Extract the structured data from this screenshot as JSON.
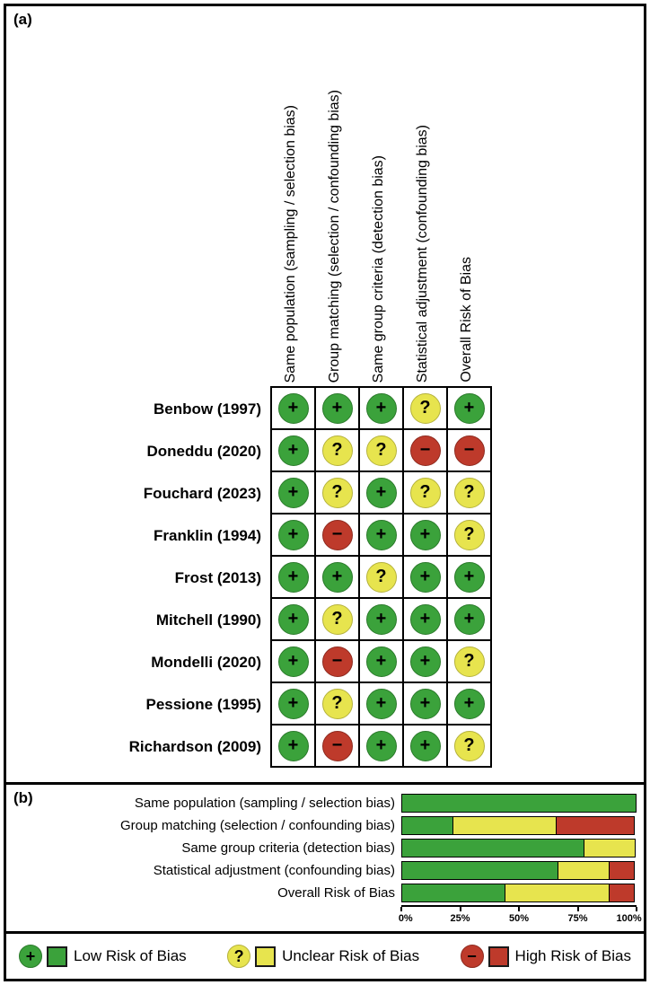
{
  "colors": {
    "low": "#3BA23B",
    "low_border": "#2B7A2B",
    "unclear": "#E7E44E",
    "unclear_border": "#B5B23C",
    "high": "#BE3A2B",
    "high_border": "#8E2A1F"
  },
  "ratings_key": {
    "low": {
      "symbol": "+",
      "label": "Low Risk of Bias"
    },
    "unclear": {
      "symbol": "?",
      "label": "Unclear Risk of Bias"
    },
    "high": {
      "symbol": "−",
      "label": "High Risk of Bias"
    }
  },
  "panel_a": {
    "label": "(a)",
    "domains": [
      "Same population (sampling / selection bias)",
      "Group matching (selection / confounding bias)",
      "Same group criteria (detection bias)",
      "Statistical adjustment (confounding bias)",
      "Overall Risk of Bias"
    ],
    "studies": [
      {
        "name": "Benbow (1997)",
        "ratings": [
          "low",
          "low",
          "low",
          "unclear",
          "low"
        ]
      },
      {
        "name": "Doneddu (2020)",
        "ratings": [
          "low",
          "unclear",
          "unclear",
          "high",
          "high"
        ]
      },
      {
        "name": "Fouchard (2023)",
        "ratings": [
          "low",
          "unclear",
          "low",
          "unclear",
          "unclear"
        ]
      },
      {
        "name": "Franklin (1994)",
        "ratings": [
          "low",
          "high",
          "low",
          "low",
          "unclear"
        ]
      },
      {
        "name": "Frost (2013)",
        "ratings": [
          "low",
          "low",
          "unclear",
          "low",
          "low"
        ]
      },
      {
        "name": "Mitchell (1990)",
        "ratings": [
          "low",
          "unclear",
          "low",
          "low",
          "low"
        ]
      },
      {
        "name": "Mondelli (2020)",
        "ratings": [
          "low",
          "high",
          "low",
          "low",
          "unclear"
        ]
      },
      {
        "name": "Pessione (1995)",
        "ratings": [
          "low",
          "unclear",
          "low",
          "low",
          "low"
        ]
      },
      {
        "name": "Richardson (2009)",
        "ratings": [
          "low",
          "high",
          "low",
          "low",
          "unclear"
        ]
      }
    ]
  },
  "panel_b": {
    "label": "(b)",
    "chart_data": {
      "type": "bar",
      "stacked": true,
      "orientation": "horizontal",
      "categories": [
        "Same population (sampling / selection bias)",
        "Group matching (selection / confounding bias)",
        "Same group criteria (detection bias)",
        "Statistical adjustment (confounding bias)",
        "Overall Risk of Bias"
      ],
      "series": [
        {
          "name": "Low Risk of Bias",
          "rating": "low",
          "values": [
            100,
            22.2,
            77.8,
            66.7,
            44.4
          ]
        },
        {
          "name": "Unclear Risk of Bias",
          "rating": "unclear",
          "values": [
            0,
            44.4,
            22.2,
            22.2,
            44.4
          ]
        },
        {
          "name": "High Risk of Bias",
          "rating": "high",
          "values": [
            0,
            33.3,
            0,
            11.1,
            11.1
          ]
        }
      ],
      "x_ticks": [
        "0%",
        "25%",
        "50%",
        "75%",
        "100%"
      ],
      "xlim": [
        0,
        100
      ],
      "legend_position": "bottom"
    }
  },
  "legend": {
    "items": [
      {
        "rating": "low",
        "symbol": "+",
        "label": "Low Risk of Bias"
      },
      {
        "rating": "unclear",
        "symbol": "?",
        "label": "Unclear Risk of Bias"
      },
      {
        "rating": "high",
        "symbol": "−",
        "label": "High Risk of Bias"
      }
    ]
  }
}
